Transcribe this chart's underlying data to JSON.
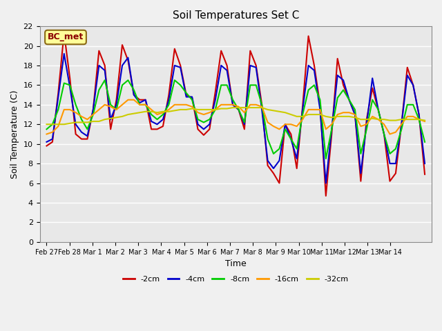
{
  "title": "Soil Temperatures Set C",
  "xlabel": "Time",
  "ylabel": "Soil Temperature (C)",
  "annotation": "BC_met",
  "ylim": [
    0,
    22
  ],
  "yticks": [
    0,
    2,
    4,
    6,
    8,
    10,
    12,
    14,
    16,
    18,
    20,
    22
  ],
  "x_labels": [
    "Feb 27",
    "Feb 28",
    "Mar 1",
    "Mar 2",
    "Mar 3",
    "Mar 4",
    "Mar 5",
    "Mar 6",
    "Mar 7",
    "Mar 8",
    "Mar 9",
    "Mar 10",
    "Mar 11",
    "Mar 12",
    "Mar 13",
    "Mar 14"
  ],
  "fig_bg": "#f0f0f0",
  "plot_bg": "#e8e8e8",
  "series": {
    "-2cm": {
      "color": "#cc0000",
      "lw": 1.5,
      "values": [
        9.8,
        10.2,
        15.2,
        21.3,
        16.7,
        11.0,
        10.5,
        10.5,
        13.5,
        19.5,
        18.0,
        11.5,
        14.5,
        20.1,
        18.5,
        15.0,
        14.5,
        14.5,
        11.5,
        11.5,
        11.8,
        15.0,
        19.7,
        18.0,
        15.0,
        14.7,
        11.5,
        10.9,
        11.5,
        15.3,
        19.5,
        18.0,
        14.0,
        13.5,
        11.5,
        19.5,
        18.0,
        14.0,
        7.8,
        7.0,
        6.0,
        12.0,
        11.0,
        7.5,
        13.8,
        21.0,
        18.0,
        14.0,
        4.7,
        11.0,
        18.7,
        16.0,
        14.5,
        13.0,
        6.2,
        12.5,
        15.7,
        13.5,
        11.0,
        6.2,
        7.0,
        12.0,
        17.8,
        16.0,
        13.0,
        6.9
      ]
    },
    "-4cm": {
      "color": "#0000cc",
      "lw": 1.5,
      "values": [
        10.2,
        10.5,
        14.8,
        19.2,
        15.8,
        12.0,
        11.2,
        10.8,
        13.5,
        18.0,
        17.5,
        12.5,
        14.0,
        18.0,
        18.8,
        15.0,
        14.2,
        14.5,
        12.3,
        12.0,
        12.5,
        14.5,
        18.0,
        17.8,
        14.8,
        14.8,
        12.0,
        11.5,
        12.0,
        14.5,
        18.0,
        17.5,
        14.0,
        13.5,
        12.0,
        18.0,
        17.8,
        13.5,
        8.3,
        7.5,
        8.3,
        12.0,
        10.5,
        8.5,
        13.5,
        18.0,
        17.5,
        13.5,
        6.0,
        11.5,
        17.0,
        16.5,
        14.5,
        13.0,
        7.0,
        12.0,
        16.7,
        13.5,
        11.0,
        8.0,
        8.0,
        12.0,
        17.0,
        16.0,
        13.0,
        8.0
      ]
    },
    "-8cm": {
      "color": "#00cc00",
      "lw": 1.5,
      "values": [
        11.5,
        12.0,
        13.5,
        16.2,
        16.0,
        14.0,
        12.5,
        11.5,
        13.0,
        15.5,
        16.5,
        14.0,
        13.5,
        16.0,
        16.5,
        15.5,
        14.0,
        14.0,
        13.0,
        12.5,
        13.0,
        14.0,
        16.5,
        16.0,
        15.2,
        14.5,
        12.5,
        12.2,
        12.5,
        13.5,
        16.0,
        16.0,
        14.5,
        13.5,
        12.2,
        16.0,
        16.0,
        14.0,
        10.5,
        9.0,
        9.5,
        11.5,
        10.5,
        9.5,
        13.0,
        15.5,
        16.0,
        14.5,
        8.5,
        11.5,
        14.7,
        15.5,
        14.5,
        13.5,
        9.0,
        11.5,
        14.5,
        13.5,
        11.0,
        9.0,
        9.5,
        11.5,
        14.0,
        14.0,
        12.5,
        10.2
      ]
    },
    "-16cm": {
      "color": "#ff9900",
      "lw": 1.5,
      "values": [
        11.0,
        11.2,
        11.8,
        13.5,
        13.5,
        13.2,
        12.8,
        12.5,
        13.0,
        13.5,
        14.0,
        13.8,
        13.5,
        14.0,
        14.5,
        14.5,
        14.0,
        14.0,
        13.5,
        13.0,
        13.2,
        13.5,
        14.0,
        14.0,
        14.0,
        13.8,
        13.2,
        13.0,
        13.2,
        13.5,
        14.0,
        14.0,
        14.0,
        13.8,
        13.2,
        14.0,
        14.0,
        13.8,
        12.2,
        11.8,
        11.5,
        12.0,
        12.0,
        11.8,
        12.5,
        13.5,
        13.5,
        13.5,
        11.5,
        12.0,
        13.0,
        13.2,
        13.2,
        13.0,
        11.8,
        12.0,
        12.8,
        12.5,
        12.0,
        11.0,
        11.2,
        12.0,
        12.8,
        12.8,
        12.5,
        12.3
      ]
    },
    "-32cm": {
      "color": "#cccc00",
      "lw": 1.5,
      "values": [
        12.0,
        12.0,
        12.0,
        12.0,
        12.1,
        12.2,
        12.2,
        12.2,
        12.3,
        12.3,
        12.5,
        12.6,
        12.7,
        12.8,
        13.0,
        13.1,
        13.2,
        13.3,
        13.3,
        13.2,
        13.3,
        13.3,
        13.4,
        13.5,
        13.5,
        13.6,
        13.5,
        13.5,
        13.5,
        13.5,
        13.6,
        13.6,
        13.7,
        13.7,
        13.7,
        13.7,
        13.7,
        13.7,
        13.5,
        13.4,
        13.3,
        13.2,
        13.0,
        12.8,
        12.8,
        13.0,
        13.0,
        13.0,
        12.8,
        12.7,
        12.8,
        12.8,
        12.8,
        12.7,
        12.5,
        12.5,
        12.6,
        12.5,
        12.5,
        12.4,
        12.4,
        12.5,
        12.5,
        12.5,
        12.5,
        12.4
      ]
    }
  },
  "n_points": 66,
  "days_span": 16.5,
  "series_order": [
    "-2cm",
    "-4cm",
    "-8cm",
    "-16cm",
    "-32cm"
  ]
}
